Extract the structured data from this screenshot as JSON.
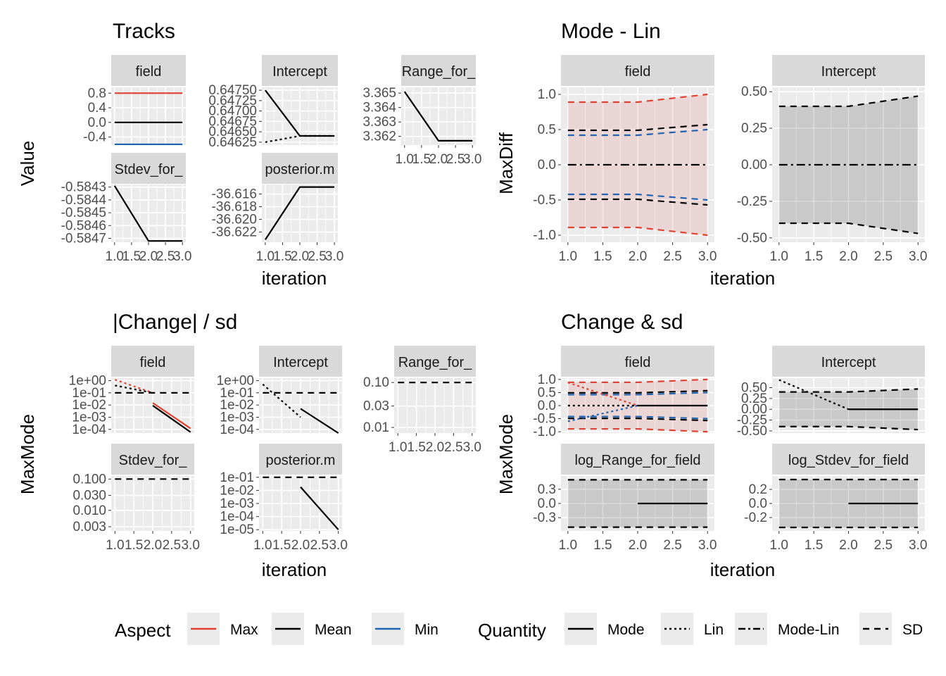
{
  "chart_data": [
    {
      "type": "line",
      "title": "Tracks",
      "xlabel": "iteration",
      "ylabel": "Value",
      "x": [
        1,
        2,
        3
      ],
      "panels": [
        {
          "name": "field",
          "y_ticks": [
            "0.8",
            "0.4",
            "0.0",
            "-0.4"
          ],
          "ylim": [
            -0.62,
            0.96
          ],
          "lines": [
            {
              "aspect": "Max",
              "quantity": "Mode",
              "values": [
                0.8,
                0.8,
                0.8
              ]
            },
            {
              "aspect": "Mean",
              "quantity": "Mode",
              "values": [
                0.0,
                0.0,
                0.0
              ]
            },
            {
              "aspect": "Min",
              "quantity": "Mode",
              "values": [
                -0.6,
                -0.6,
                -0.6
              ]
            }
          ]
        },
        {
          "name": "Intercept",
          "y_ticks": [
            "0.64750",
            "0.64725",
            "0.64700",
            "0.64675",
            "0.64650",
            "0.64625"
          ],
          "ylim": [
            0.64618,
            0.64757
          ],
          "lines": [
            {
              "aspect": "Mean",
              "quantity": "Mode",
              "values": [
                0.6475,
                0.6464,
                0.6464
              ]
            },
            {
              "aspect": "Mean",
              "quantity": "Lin",
              "values": [
                0.64625,
                0.6464,
                0.6464
              ]
            }
          ]
        },
        {
          "name": "Range_for_",
          "y_ticks": [
            "3.365",
            "3.364",
            "3.363",
            "3.362"
          ],
          "ylim": [
            3.3614,
            3.3654
          ],
          "lines": [
            {
              "aspect": "Mean",
              "quantity": "Mode",
              "values": [
                3.3651,
                3.3617,
                3.3617
              ]
            }
          ]
        },
        {
          "name": "Stdev_for_",
          "y_ticks": [
            "-0.5843",
            "-0.5844",
            "-0.5845",
            "-0.5846",
            "-0.5847"
          ],
          "ylim": [
            -0.58473,
            -0.58428
          ],
          "lines": [
            {
              "aspect": "Mean",
              "quantity": "Mode",
              "values": [
                -0.58429,
                -0.58472,
                -0.58472
              ]
            }
          ]
        },
        {
          "name": "posterior.m",
          "y_ticks": [
            "-36.616",
            "-36.618",
            "-36.620",
            "-36.622"
          ],
          "ylim": [
            -36.6236,
            -36.6145
          ],
          "lines": [
            {
              "aspect": "Mean",
              "quantity": "Mode",
              "values": [
                -36.6232,
                -36.6149,
                -36.6149
              ]
            }
          ]
        }
      ],
      "x_ticks": [
        "1.0",
        "1.5",
        "2.0",
        "2.5",
        "3.0"
      ]
    },
    {
      "type": "line",
      "title": "Mode - Lin",
      "xlabel": "iteration",
      "ylabel": "MaxDiff",
      "x": [
        1,
        2,
        3
      ],
      "x_ticks": [
        "1.0",
        "1.5",
        "2.0",
        "2.5",
        "3.0"
      ],
      "panels": [
        {
          "name": "field",
          "y_ticks": [
            "1.0",
            "0.5",
            "0.0",
            "-0.5",
            "-1.0"
          ],
          "ylim": [
            -1.1,
            1.1
          ],
          "ribbon": {
            "upper": [
              0.89,
              0.89,
              1.0
            ],
            "lower": [
              -0.89,
              -0.89,
              -1.0
            ],
            "color": "#e55a4f"
          },
          "lines": [
            {
              "aspect": "Max",
              "quantity": "SD",
              "values": [
                0.89,
                0.89,
                1.0
              ]
            },
            {
              "aspect": "Max",
              "quantity": "SD",
              "values": [
                -0.89,
                -0.89,
                -1.0
              ]
            },
            {
              "aspect": "Mean",
              "quantity": "SD",
              "values": [
                0.49,
                0.49,
                0.57
              ]
            },
            {
              "aspect": "Mean",
              "quantity": "SD",
              "values": [
                -0.49,
                -0.49,
                -0.57
              ]
            },
            {
              "aspect": "Min",
              "quantity": "SD",
              "values": [
                0.42,
                0.42,
                0.5
              ]
            },
            {
              "aspect": "Min",
              "quantity": "SD",
              "values": [
                -0.42,
                -0.42,
                -0.5
              ]
            },
            {
              "aspect": "Mean",
              "quantity": "Mode-Lin",
              "values": [
                0.0,
                0.0,
                0.0
              ]
            }
          ]
        },
        {
          "name": "Intercept",
          "y_ticks": [
            "0.50",
            "0.25",
            "0.00",
            "-0.25",
            "-0.50"
          ],
          "ylim": [
            -0.53,
            0.53
          ],
          "ribbon": {
            "upper": [
              0.4,
              0.4,
              0.47
            ],
            "lower": [
              -0.4,
              -0.4,
              -0.47
            ],
            "color": "#000000"
          },
          "lines": [
            {
              "aspect": "Mean",
              "quantity": "SD",
              "values": [
                0.4,
                0.4,
                0.47
              ]
            },
            {
              "aspect": "Mean",
              "quantity": "SD",
              "values": [
                -0.4,
                -0.4,
                -0.47
              ]
            },
            {
              "aspect": "Mean",
              "quantity": "Mode-Lin",
              "values": [
                0.0,
                0.0,
                0.0
              ]
            }
          ]
        }
      ]
    },
    {
      "type": "line",
      "title": "|Change| / sd",
      "xlabel": "iteration",
      "ylabel": "MaxMode",
      "x": [
        1,
        2,
        3
      ],
      "y_scale": "log",
      "x_ticks": [
        "1.0",
        "1.5",
        "2.0",
        "2.5",
        "3.0"
      ],
      "panels": [
        {
          "name": "field",
          "y_ticks": [
            "1e+00",
            "1e-01",
            "1e-02",
            "1e-03",
            "1e-04"
          ],
          "ylim": [
            5e-05,
            1.6
          ],
          "lines": [
            {
              "aspect": "Max",
              "quantity": "Lin",
              "values": [
                1.2,
                0.1,
                null
              ]
            },
            {
              "aspect": "Mean",
              "quantity": "Lin",
              "values": [
                0.4,
                0.1,
                null
              ]
            },
            {
              "aspect": "Mean",
              "quantity": "SD",
              "values": [
                0.1,
                0.1,
                0.1
              ]
            },
            {
              "aspect": "Max",
              "quantity": "Mode",
              "values": [
                null,
                0.015,
                0.00012
              ]
            },
            {
              "aspect": "Mean",
              "quantity": "Mode",
              "values": [
                null,
                0.009,
                6e-05
              ]
            }
          ]
        },
        {
          "name": "Intercept",
          "y_ticks": [
            "1e+00",
            "1e-01",
            "1e-02",
            "1e-03",
            "1e-04"
          ],
          "ylim": [
            5e-05,
            1.6
          ],
          "lines": [
            {
              "aspect": "Mean",
              "quantity": "Lin",
              "values": [
                0.5,
                0.001,
                null
              ]
            },
            {
              "aspect": "Mean",
              "quantity": "SD",
              "values": [
                0.1,
                0.1,
                0.1
              ]
            },
            {
              "aspect": "Mean",
              "quantity": "Mode",
              "values": [
                null,
                0.005,
                5e-05
              ]
            }
          ]
        },
        {
          "name": "Range_for_",
          "y_ticks": [
            "0.10",
            "0.03",
            "0.01"
          ],
          "ylim": [
            0.0075,
            0.125
          ],
          "lines": [
            {
              "aspect": "Mean",
              "quantity": "SD",
              "values": [
                0.1,
                0.1,
                0.1
              ]
            }
          ]
        },
        {
          "name": "Stdev_for_",
          "y_ticks": [
            "0.100",
            "0.030",
            "0.010",
            "0.003"
          ],
          "ylim": [
            0.0022,
            0.125
          ],
          "lines": [
            {
              "aspect": "Mean",
              "quantity": "SD",
              "values": [
                0.1,
                0.1,
                0.1
              ]
            }
          ]
        },
        {
          "name": "posterior.m",
          "y_ticks": [
            "1e-01",
            "1e-02",
            "1e-03",
            "1e-04",
            "1e-05"
          ],
          "ylim": [
            8e-06,
            0.125
          ],
          "lines": [
            {
              "aspect": "Mean",
              "quantity": "SD",
              "values": [
                0.1,
                0.1,
                0.1
              ]
            },
            {
              "aspect": "Mean",
              "quantity": "Mode",
              "values": [
                null,
                0.018,
                1e-05
              ]
            }
          ]
        }
      ]
    },
    {
      "type": "line",
      "title": "Change & sd",
      "xlabel": "iteration",
      "ylabel": "MaxMode",
      "x": [
        1,
        2,
        3
      ],
      "x_ticks": [
        "1.0",
        "1.5",
        "2.0",
        "2.5",
        "3.0"
      ],
      "panels": [
        {
          "name": "field",
          "y_ticks": [
            "1.0",
            "0.5",
            "0.0",
            "-0.5",
            "-1.0"
          ],
          "ylim": [
            -1.05,
            1.05
          ],
          "ribbon": {
            "upper": [
              0.89,
              0.89,
              1.0
            ],
            "lower": [
              -0.89,
              -0.89,
              -1.0
            ],
            "color": "#e55a4f"
          },
          "lines": [
            {
              "aspect": "Max",
              "quantity": "SD",
              "values": [
                0.89,
                0.89,
                1.0
              ]
            },
            {
              "aspect": "Max",
              "quantity": "SD",
              "values": [
                -0.89,
                -0.89,
                -1.0
              ]
            },
            {
              "aspect": "Mean",
              "quantity": "SD",
              "values": [
                0.49,
                0.49,
                0.57
              ]
            },
            {
              "aspect": "Mean",
              "quantity": "SD",
              "values": [
                -0.49,
                -0.49,
                -0.57
              ]
            },
            {
              "aspect": "Min",
              "quantity": "SD",
              "values": [
                0.42,
                0.42,
                0.5
              ]
            },
            {
              "aspect": "Min",
              "quantity": "SD",
              "values": [
                -0.42,
                -0.42,
                -0.5
              ]
            },
            {
              "aspect": "Max",
              "quantity": "Lin",
              "values": [
                0.88,
                0.0,
                null
              ]
            },
            {
              "aspect": "Min",
              "quantity": "Lin",
              "values": [
                -0.6,
                0.0,
                null
              ]
            },
            {
              "aspect": "Mean",
              "quantity": "Lin",
              "values": [
                0.0,
                0.0,
                null
              ]
            },
            {
              "aspect": "Mean",
              "quantity": "Mode",
              "values": [
                null,
                0.0,
                0.0
              ]
            }
          ]
        },
        {
          "name": "Intercept",
          "y_ticks": [
            "0.50",
            "0.25",
            "0.00",
            "-0.25",
            "-0.50"
          ],
          "ylim": [
            -0.55,
            0.72
          ],
          "ribbon": {
            "upper": [
              0.4,
              0.4,
              0.47
            ],
            "lower": [
              -0.4,
              -0.4,
              -0.47
            ],
            "color": "#000000"
          },
          "lines": [
            {
              "aspect": "Mean",
              "quantity": "SD",
              "values": [
                0.4,
                0.4,
                0.47
              ]
            },
            {
              "aspect": "Mean",
              "quantity": "SD",
              "values": [
                -0.4,
                -0.4,
                -0.47
              ]
            },
            {
              "aspect": "Mean",
              "quantity": "Lin",
              "values": [
                0.68,
                0.0,
                null
              ]
            },
            {
              "aspect": "Mean",
              "quantity": "Mode",
              "values": [
                null,
                0.0,
                0.0
              ]
            }
          ]
        },
        {
          "name": "log_Range_for_field",
          "y_ticks": [
            "0.3",
            "0.0",
            "-0.3"
          ],
          "ylim": [
            -0.58,
            0.58
          ],
          "ribbon": {
            "upper": [
              0.5,
              0.5,
              0.5
            ],
            "lower": [
              -0.5,
              -0.5,
              -0.5
            ],
            "color": "#000000"
          },
          "lines": [
            {
              "aspect": "Mean",
              "quantity": "SD",
              "values": [
                0.5,
                0.5,
                0.5
              ]
            },
            {
              "aspect": "Mean",
              "quantity": "SD",
              "values": [
                -0.5,
                -0.5,
                -0.5
              ]
            },
            {
              "aspect": "Mean",
              "quantity": "Mode",
              "values": [
                null,
                0.0,
                0.0
              ]
            }
          ]
        },
        {
          "name": "log_Stdev_for_field",
          "y_ticks": [
            "0.2",
            "0.0",
            "-0.2"
          ],
          "ylim": [
            -0.39,
            0.39
          ],
          "ribbon": {
            "upper": [
              0.34,
              0.34,
              0.34
            ],
            "lower": [
              -0.34,
              -0.34,
              -0.34
            ],
            "color": "#000000"
          },
          "lines": [
            {
              "aspect": "Mean",
              "quantity": "SD",
              "values": [
                0.34,
                0.34,
                0.34
              ]
            },
            {
              "aspect": "Mean",
              "quantity": "SD",
              "values": [
                -0.34,
                -0.34,
                -0.34
              ]
            },
            {
              "aspect": "Mean",
              "quantity": "Mode",
              "values": [
                null,
                0.0,
                0.0
              ]
            }
          ]
        }
      ]
    }
  ],
  "legend": {
    "aspect_title": "Aspect",
    "aspects": [
      {
        "label": "Max",
        "color": "#e0402f"
      },
      {
        "label": "Mean",
        "color": "#000000"
      },
      {
        "label": "Min",
        "color": "#1f63b3"
      }
    ],
    "quantity_title": "Quantity",
    "quantities": [
      {
        "label": "Mode",
        "dash": "solid"
      },
      {
        "label": "Lin",
        "dash": "dotted"
      },
      {
        "label": "Mode-Lin",
        "dash": "dotdash"
      },
      {
        "label": "SD",
        "dash": "dashed"
      }
    ]
  },
  "colors": {
    "panel_bg": "#ebebeb",
    "strip_bg": "#d9d9d9",
    "grid": "#ffffff"
  }
}
